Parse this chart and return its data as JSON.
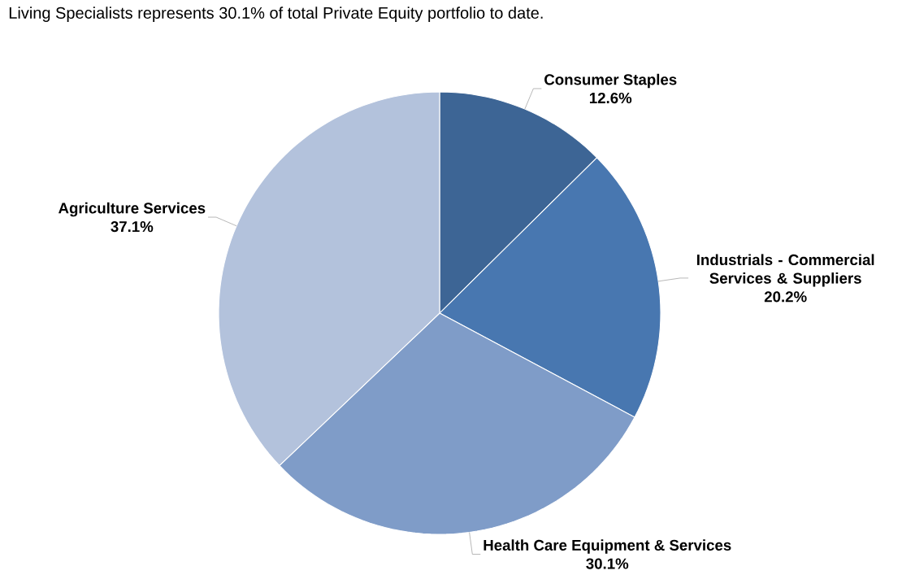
{
  "chart_data": {
    "type": "pie",
    "annotations": [
      "Living Specialists represents 30.1% of total Private Equity portfolio to date."
    ],
    "categories": [
      "Consumer Staples",
      "Industrials - Commercial Services & Suppliers",
      "Health Care Equipment & Services",
      "Agriculture Services"
    ],
    "values": [
      12.6,
      20.2,
      30.1,
      37.1
    ],
    "value_labels": [
      "12.6%",
      "20.2%",
      "30.1%",
      "37.1%"
    ],
    "colors": [
      "#3d6595",
      "#4877b0",
      "#7f9cc8",
      "#b3c2dc"
    ]
  }
}
